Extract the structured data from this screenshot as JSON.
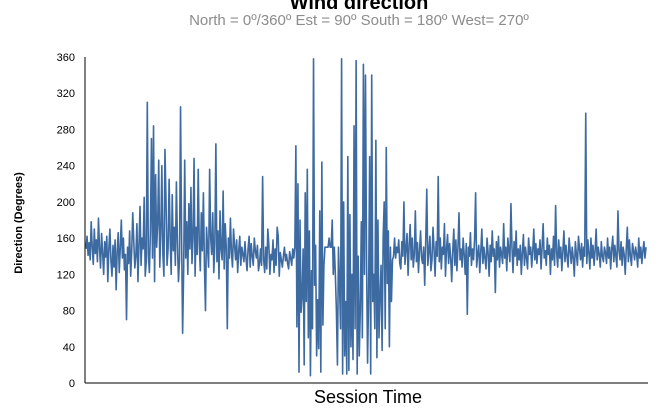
{
  "chart_data": {
    "type": "line",
    "title": "Wind direction",
    "subtitle": "North = 0º/360º   Est = 90º   South = 180º   West= 270º",
    "xlabel": "Session Time",
    "ylabel": "Direction (Degrees)",
    "ylim": [
      0,
      360
    ],
    "yticks": [
      "0",
      "40",
      "80",
      "120",
      "160",
      "200",
      "240",
      "280",
      "320",
      "360"
    ],
    "grid": false,
    "legend": "none",
    "color": "#3d6aa0",
    "series": [
      {
        "values": [
          148,
          162,
          141,
          155,
          136,
          178,
          150,
          131,
          170,
          143,
          158,
          134,
          182,
          149,
          127,
          165,
          144,
          120,
          156,
          139,
          162,
          112,
          148,
          170,
          135,
          118,
          152,
          128,
          158,
          103,
          145,
          166,
          122,
          150,
          180,
          138,
          160,
          125,
          142,
          70,
          150,
          132,
          168,
          118,
          146,
          188,
          156,
          127,
          140,
          176,
          112,
          153,
          195,
          130,
          160,
          148,
          205,
          118,
          134,
          310,
          142,
          122,
          168,
          270,
          138,
          284,
          112,
          230,
          150,
          176,
          246,
          128,
          165,
          240,
          142,
          118,
          258,
          202,
          130,
          148,
          225,
          160,
          120,
          208,
          146,
          172,
          130,
          222,
          155,
          112,
          136,
          305,
          162,
          55,
          125,
          246,
          138,
          178,
          120,
          198,
          148,
          216,
          132,
          160,
          248,
          118,
          172,
          142,
          236,
          155,
          124,
          188,
          146,
          210,
          130,
          80,
          172,
          150,
          128,
          236,
          160,
          142,
          188,
          122,
          154,
          264,
          134,
          168,
          115,
          190,
          148,
          136,
          212,
          126,
          176,
          150,
          60,
          160,
          138,
          182,
          144,
          128,
          170,
          152,
          136,
          158,
          122,
          146,
          162,
          130,
          150,
          142,
          134,
          156,
          138,
          124,
          148,
          162,
          128,
          154,
          140,
          130,
          160,
          146,
          138,
          152,
          124,
          132,
          148,
          130,
          228,
          136,
          122,
          150,
          126,
          170,
          152,
          120,
          142,
          136,
          158,
          122,
          148,
          130,
          172,
          162,
          118,
          144,
          136,
          128,
          140,
          150,
          135,
          142,
          132,
          126,
          145,
          138,
          130,
          148
        ],
        "anomaly": [
          138,
          150,
          262,
          62,
          220,
          12,
          180,
          78,
          96,
          148,
          20,
          210,
          90,
          236,
          50,
          168,
          8,
          124,
          60,
          358,
          108,
          152,
          30,
          92,
          38,
          190,
          12,
          244,
          64,
          130,
          150,
          150,
          150,
          150,
          160,
          150,
          150,
          180,
          120,
          150,
          120,
          80,
          20,
          150,
          110,
          60,
          358,
          10,
          200,
          30,
          90,
          10,
          250,
          14,
          186,
          40,
          120,
          26,
          284,
          60,
          356,
          10,
          140,
          30,
          80,
          178,
          50,
          352,
          120,
          340,
          140,
          22,
          96,
          250,
          10,
          340,
          90,
          120,
          60,
          268,
          28,
          180,
          50,
          96,
          130,
          36,
          160,
          200,
          60,
          260,
          110,
          168,
          40,
          150,
          90,
          136,
          140,
          160,
          138,
          150
        ],
        "tail": [
          144,
          158,
          132,
          126,
          156,
          140,
          200,
          131,
          148,
          165,
          119,
          152,
          175,
          136,
          160,
          128,
          142,
          190,
          134,
          155,
          122,
          146,
          168,
          138,
          132,
          150,
          108,
          158,
          214,
          130,
          145,
          162,
          124,
          136,
          172,
          148,
          118,
          156,
          140,
          228,
          134,
          160,
          126,
          150,
          142,
          176,
          118,
          148,
          164,
          132,
          154,
          138,
          112,
          146,
          170,
          130,
          158,
          124,
          150,
          188,
          136,
          148,
          128,
          160,
          142,
          120,
          154,
          76,
          150,
          140,
          166,
          130,
          148,
          136,
          158,
          210,
          128,
          142,
          152,
          122,
          146,
          170,
          132,
          150,
          138,
          126,
          160,
          144,
          118,
          152,
          134,
          168,
          140,
          148,
          100,
          156,
          136,
          162,
          128,
          150,
          142,
          132,
          176,
          138,
          150,
          124,
          160,
          146,
          134,
          198,
          150,
          122,
          156,
          140,
          168,
          130,
          148,
          136,
          152,
          120,
          144,
          164,
          130,
          150,
          138,
          126,
          160,
          142,
          150,
          128,
          146,
          170,
          136,
          154,
          132,
          148,
          142,
          158,
          126,
          150,
          176,
          138,
          146,
          130,
          160,
          142,
          152,
          120,
          148,
          136,
          162,
          130,
          196,
          144,
          128,
          158,
          138,
          150,
          124,
          146,
          168,
          134,
          152,
          140,
          128,
          160,
          146,
          132,
          150,
          138,
          118,
          156,
          142,
          130,
          162,
          148,
          136,
          154,
          128,
          150,
          140,
          298,
          132,
          158,
          144,
          126,
          160,
          138,
          152,
          130,
          146,
          170,
          136,
          150,
          142,
          128,
          156,
          140,
          134,
          150,
          144,
          132,
          160,
          138,
          150,
          126,
          148,
          162,
          134,
          152,
          140,
          128,
          190,
          146,
          136,
          156,
          130,
          150,
          142,
          120,
          148,
          172,
          134,
          158,
          140,
          130,
          154,
          146,
          136,
          150,
          142,
          128,
          160,
          138,
          150,
          132,
          146,
          156,
          138,
          150
        ]
      }
    ]
  }
}
